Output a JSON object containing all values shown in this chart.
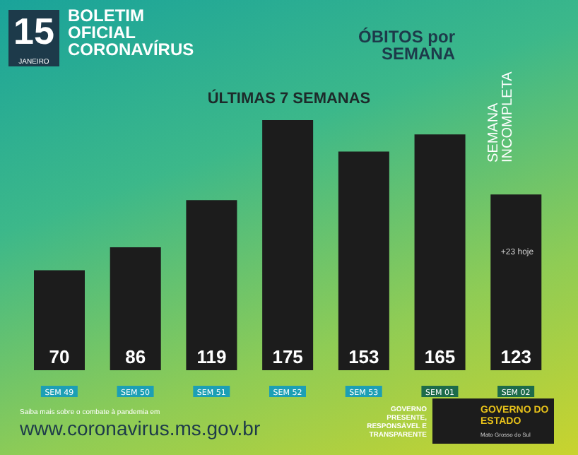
{
  "chart_data": {
    "type": "bar",
    "title": "ÓBITOS por SEMANA",
    "subtitle": "ÚLTIMAS 7 SEMANAS",
    "categories": [
      "SEM 49",
      "SEM 50",
      "SEM 51",
      "SEM 52",
      "SEM 53",
      "SEM 01",
      "SEM 02"
    ],
    "values": [
      70,
      86,
      119,
      175,
      153,
      165,
      123
    ],
    "color": "#1c1c1c",
    "data_labels": true,
    "legend": false,
    "annotations": [
      "15",
      "JANEIRO",
      "BOLETIM OFICIAL CORONAVÍRUS",
      "SEMANA INCOMPLETA",
      "+23 hoje",
      "Saiba mais sobre o combate à pandemia em",
      "www.coronavirus.ms.gov.br",
      "GOVERNO PRESENTE, RESPONSÁVEL E TRANSPARENTE",
      "GOVERNO DO ESTADO",
      "Mato Grosso do Sul"
    ]
  }
}
